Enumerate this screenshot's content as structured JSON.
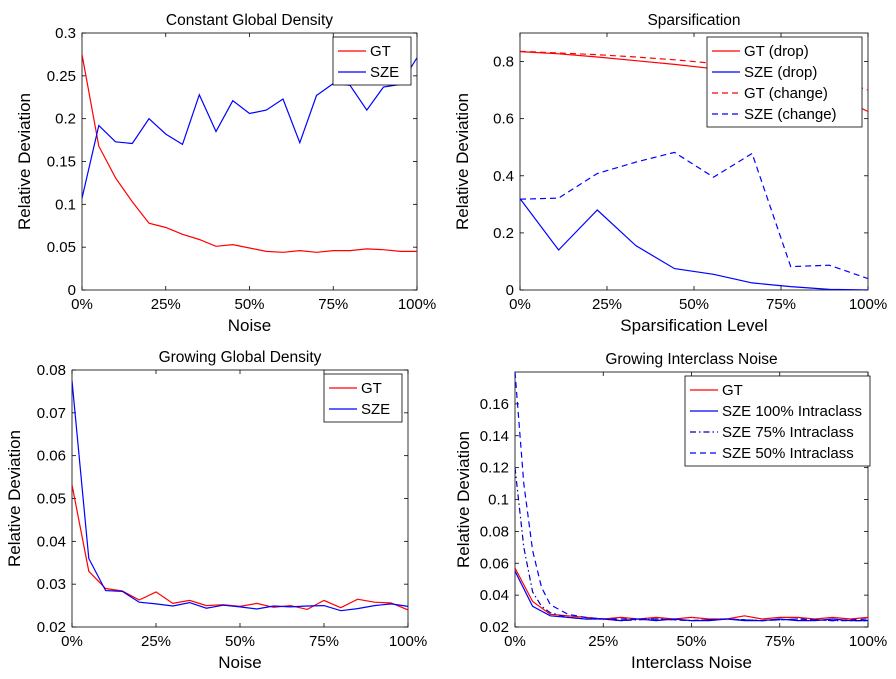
{
  "figure": {
    "background": "#ffffff"
  },
  "chart_data": [
    {
      "type": "line",
      "title": "Constant Global Density",
      "xlabel": "Noise",
      "ylabel": "Relative Deviation",
      "xlim": [
        0,
        100
      ],
      "ylim": [
        0,
        0.3
      ],
      "xticks": [
        0,
        25,
        50,
        75,
        100
      ],
      "xtick_labels": [
        "0%",
        "25%",
        "50%",
        "75%",
        "100%"
      ],
      "yticks": [
        0,
        0.05,
        0.1,
        0.15,
        0.2,
        0.25,
        0.3
      ],
      "ytick_labels": [
        "0",
        "0.05",
        "0.1",
        "0.15",
        "0.2",
        "0.25",
        "0.3"
      ],
      "legend_position": "top-right",
      "series": [
        {
          "name": "GT",
          "color": "#ff0000",
          "dash": "solid",
          "x": [
            0,
            5,
            10,
            15,
            20,
            25,
            30,
            35,
            40,
            45,
            50,
            55,
            60,
            65,
            70,
            75,
            80,
            85,
            90,
            95,
            100
          ],
          "y": [
            0.275,
            0.168,
            0.131,
            0.103,
            0.078,
            0.073,
            0.065,
            0.059,
            0.051,
            0.053,
            0.049,
            0.045,
            0.044,
            0.046,
            0.044,
            0.046,
            0.046,
            0.048,
            0.047,
            0.045,
            0.045
          ]
        },
        {
          "name": "SZE",
          "color": "#0000ff",
          "dash": "solid",
          "x": [
            0,
            5,
            10,
            15,
            20,
            25,
            30,
            35,
            40,
            45,
            50,
            55,
            60,
            65,
            70,
            75,
            80,
            85,
            90,
            95,
            100
          ],
          "y": [
            0.107,
            0.192,
            0.173,
            0.171,
            0.2,
            0.182,
            0.17,
            0.228,
            0.185,
            0.221,
            0.206,
            0.21,
            0.223,
            0.172,
            0.227,
            0.241,
            0.239,
            0.21,
            0.237,
            0.24,
            0.271
          ]
        }
      ]
    },
    {
      "type": "line",
      "title": "Sparsification",
      "xlabel": "Sparsification Level",
      "ylabel": "Relative Deviation",
      "xlim": [
        0,
        100
      ],
      "ylim": [
        0,
        0.9
      ],
      "xticks": [
        0,
        25,
        50,
        75,
        100
      ],
      "xtick_labels": [
        "0%",
        "25%",
        "50%",
        "75%",
        "100%"
      ],
      "yticks": [
        0,
        0.2,
        0.4,
        0.6,
        0.8
      ],
      "ytick_labels": [
        "0",
        "0.2",
        "0.4",
        "0.6",
        "0.8"
      ],
      "legend_position": "top-right",
      "series": [
        {
          "name": "GT (drop)",
          "color": "#ff0000",
          "dash": "solid",
          "x": [
            0,
            11.1,
            22.2,
            33.3,
            44.4,
            55.6,
            66.7,
            77.8,
            88.9,
            100
          ],
          "y": [
            0.835,
            0.827,
            0.816,
            0.803,
            0.79,
            0.775,
            0.76,
            0.735,
            0.69,
            0.625
          ]
        },
        {
          "name": "SZE (drop)",
          "color": "#0000ff",
          "dash": "solid",
          "x": [
            0,
            11.1,
            22.2,
            33.3,
            44.4,
            55.6,
            66.7,
            77.8,
            88.9,
            100
          ],
          "y": [
            0.32,
            0.14,
            0.28,
            0.155,
            0.075,
            0.055,
            0.025,
            0.012,
            0.002,
            0.0
          ]
        },
        {
          "name": "GT (change)",
          "color": "#ff0000",
          "dash": "dashed",
          "x": [
            0,
            11.1,
            22.2,
            33.3,
            44.4,
            55.6,
            66.7,
            77.8,
            88.9,
            100
          ],
          "y": [
            0.836,
            0.83,
            0.824,
            0.816,
            0.806,
            0.794,
            0.78,
            0.765,
            0.745,
            0.7
          ]
        },
        {
          "name": "SZE (change)",
          "color": "#0000ff",
          "dash": "dashed",
          "x": [
            0,
            11.1,
            22.2,
            33.3,
            44.4,
            55.6,
            66.7,
            77.8,
            88.9,
            100
          ],
          "y": [
            0.318,
            0.322,
            0.408,
            0.448,
            0.482,
            0.395,
            0.478,
            0.082,
            0.087,
            0.04
          ]
        }
      ]
    },
    {
      "type": "line",
      "title": "Growing Global Density",
      "xlabel": "Noise",
      "ylabel": "Relative Deviation",
      "xlim": [
        0,
        100
      ],
      "ylim": [
        0.02,
        0.08
      ],
      "xticks": [
        0,
        25,
        50,
        75,
        100
      ],
      "xtick_labels": [
        "0%",
        "25%",
        "50%",
        "75%",
        "100%"
      ],
      "yticks": [
        0.02,
        0.03,
        0.04,
        0.05,
        0.06,
        0.07,
        0.08
      ],
      "ytick_labels": [
        "0.02",
        "0.03",
        "0.04",
        "0.05",
        "0.06",
        "0.07",
        "0.08"
      ],
      "legend_position": "top-right",
      "series": [
        {
          "name": "GT",
          "color": "#ff0000",
          "dash": "solid",
          "x": [
            0,
            5,
            10,
            15,
            20,
            25,
            30,
            35,
            40,
            45,
            50,
            55,
            60,
            65,
            70,
            75,
            80,
            85,
            90,
            95,
            100
          ],
          "y": [
            0.0532,
            0.033,
            0.029,
            0.0284,
            0.0263,
            0.0282,
            0.0255,
            0.0262,
            0.025,
            0.0252,
            0.0248,
            0.0255,
            0.0246,
            0.025,
            0.0241,
            0.0262,
            0.0245,
            0.0265,
            0.0258,
            0.0256,
            0.024
          ]
        },
        {
          "name": "SZE",
          "color": "#0000ff",
          "dash": "solid",
          "x": [
            0,
            5,
            10,
            15,
            20,
            25,
            30,
            35,
            40,
            45,
            50,
            55,
            60,
            65,
            70,
            75,
            80,
            85,
            90,
            95,
            100
          ],
          "y": [
            0.0775,
            0.036,
            0.0285,
            0.0283,
            0.0258,
            0.0254,
            0.0249,
            0.0257,
            0.0244,
            0.0251,
            0.0247,
            0.0242,
            0.0249,
            0.0247,
            0.0249,
            0.025,
            0.0238,
            0.0243,
            0.025,
            0.0254,
            0.0248
          ]
        }
      ]
    },
    {
      "type": "line",
      "title": "Growing Interclass Noise",
      "xlabel": "Interclass Noise",
      "ylabel": "Relative Deviation",
      "xlim": [
        0,
        100
      ],
      "ylim": [
        0.02,
        0.18
      ],
      "xticks": [
        0,
        25,
        50,
        75,
        100
      ],
      "xtick_labels": [
        "0%",
        "25%",
        "50%",
        "75%",
        "100%"
      ],
      "yticks": [
        0.02,
        0.04,
        0.06,
        0.08,
        0.1,
        0.12,
        0.14,
        0.16
      ],
      "ytick_labels": [
        "0.02",
        "0.04",
        "0.06",
        "0.08",
        "0.1",
        "0.12",
        "0.14",
        "0.16"
      ],
      "legend_position": "top-left",
      "series": [
        {
          "name": "GT",
          "color": "#ff0000",
          "dash": "solid",
          "x": [
            0,
            5,
            10,
            15,
            20,
            25,
            30,
            35,
            40,
            45,
            50,
            55,
            60,
            65,
            70,
            75,
            80,
            85,
            90,
            95,
            100
          ],
          "y": [
            0.057,
            0.036,
            0.028,
            0.027,
            0.026,
            0.025,
            0.026,
            0.025,
            0.026,
            0.025,
            0.026,
            0.025,
            0.025,
            0.027,
            0.025,
            0.026,
            0.026,
            0.025,
            0.026,
            0.025,
            0.026
          ]
        },
        {
          "name": "SZE 100% Intraclass",
          "color": "#0000ff",
          "dash": "solid",
          "x": [
            0,
            5,
            10,
            15,
            20,
            25,
            30,
            35,
            40,
            45,
            50,
            55,
            60,
            65,
            70,
            75,
            80,
            85,
            90,
            95,
            100
          ],
          "y": [
            0.055,
            0.033,
            0.027,
            0.026,
            0.025,
            0.025,
            0.024,
            0.025,
            0.024,
            0.025,
            0.024,
            0.024,
            0.025,
            0.024,
            0.024,
            0.025,
            0.024,
            0.024,
            0.025,
            0.024,
            0.024
          ]
        },
        {
          "name": "SZE 75% Intraclass",
          "color": "#0000b4",
          "dash": "dashdot",
          "x": [
            0,
            2.5,
            5,
            7.5,
            10,
            15,
            20,
            25,
            30,
            40,
            50,
            60,
            70,
            80,
            90,
            100
          ],
          "y": [
            0.12,
            0.07,
            0.042,
            0.033,
            0.029,
            0.026,
            0.025,
            0.025,
            0.024,
            0.025,
            0.024,
            0.025,
            0.024,
            0.025,
            0.024,
            0.024
          ]
        },
        {
          "name": "SZE 50% Intraclass",
          "color": "#0000ff",
          "dash": "dashed",
          "x": [
            0,
            2.5,
            5,
            7.5,
            10,
            15,
            20,
            25,
            30,
            40,
            50,
            60,
            70,
            80,
            90,
            100
          ],
          "y": [
            0.18,
            0.11,
            0.068,
            0.045,
            0.034,
            0.028,
            0.026,
            0.025,
            0.025,
            0.025,
            0.024,
            0.025,
            0.024,
            0.025,
            0.024,
            0.025
          ]
        }
      ]
    }
  ]
}
